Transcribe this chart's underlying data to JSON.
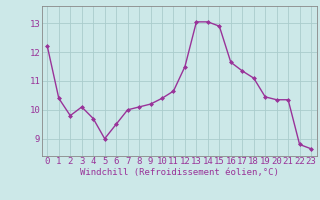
{
  "x": [
    0,
    1,
    2,
    3,
    4,
    5,
    6,
    7,
    8,
    9,
    10,
    11,
    12,
    13,
    14,
    15,
    16,
    17,
    18,
    19,
    20,
    21,
    22,
    23
  ],
  "y": [
    12.2,
    10.4,
    9.8,
    10.1,
    9.7,
    9.0,
    9.5,
    10.0,
    10.1,
    10.2,
    10.4,
    10.65,
    11.5,
    13.05,
    13.05,
    12.9,
    11.65,
    11.35,
    11.1,
    10.45,
    10.35,
    10.35,
    8.8,
    8.65
  ],
  "line_color": "#993399",
  "marker": "D",
  "marker_size": 2.0,
  "bg_color": "#cce8e8",
  "grid_color": "#aacccc",
  "xlabel": "Windchill (Refroidissement éolien,°C)",
  "xlabel_fontsize": 6.5,
  "xtick_labels": [
    "0",
    "1",
    "2",
    "3",
    "4",
    "5",
    "6",
    "7",
    "8",
    "9",
    "10",
    "11",
    "12",
    "13",
    "14",
    "15",
    "16",
    "17",
    "18",
    "19",
    "20",
    "21",
    "22",
    "23"
  ],
  "ytick_labels": [
    "9",
    "10",
    "11",
    "12",
    "13"
  ],
  "yticks": [
    9,
    10,
    11,
    12,
    13
  ],
  "ylim": [
    8.4,
    13.6
  ],
  "xlim": [
    -0.5,
    23.5
  ],
  "tick_fontsize": 6.5,
  "line_width": 1.0,
  "spine_color": "#888888"
}
